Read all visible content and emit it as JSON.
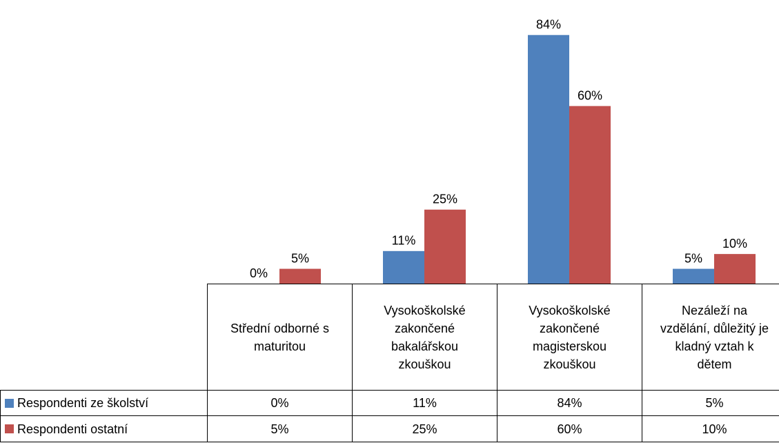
{
  "chart_data": {
    "type": "bar",
    "categories": [
      "Střední odborné s maturitou",
      "Vysokoškolské zakončené bakalářskou zkouškou",
      "Vysokoškolské zakončené magisterskou zkouškou",
      "Nezáleží na vzdělání, důležitý je kladný vztah k dětem"
    ],
    "series": [
      {
        "name": "Respondenti ze školství",
        "color": "#4f81bd",
        "values": [
          0,
          11,
          84,
          5
        ],
        "value_labels": [
          "0%",
          "11%",
          "84%",
          "5%"
        ]
      },
      {
        "name": "Respondenti ostatní",
        "color": "#c0504d",
        "values": [
          5,
          25,
          60,
          10
        ],
        "value_labels": [
          "5%",
          "25%",
          "60%",
          "10%"
        ]
      }
    ],
    "ylim": [
      0,
      90
    ]
  }
}
